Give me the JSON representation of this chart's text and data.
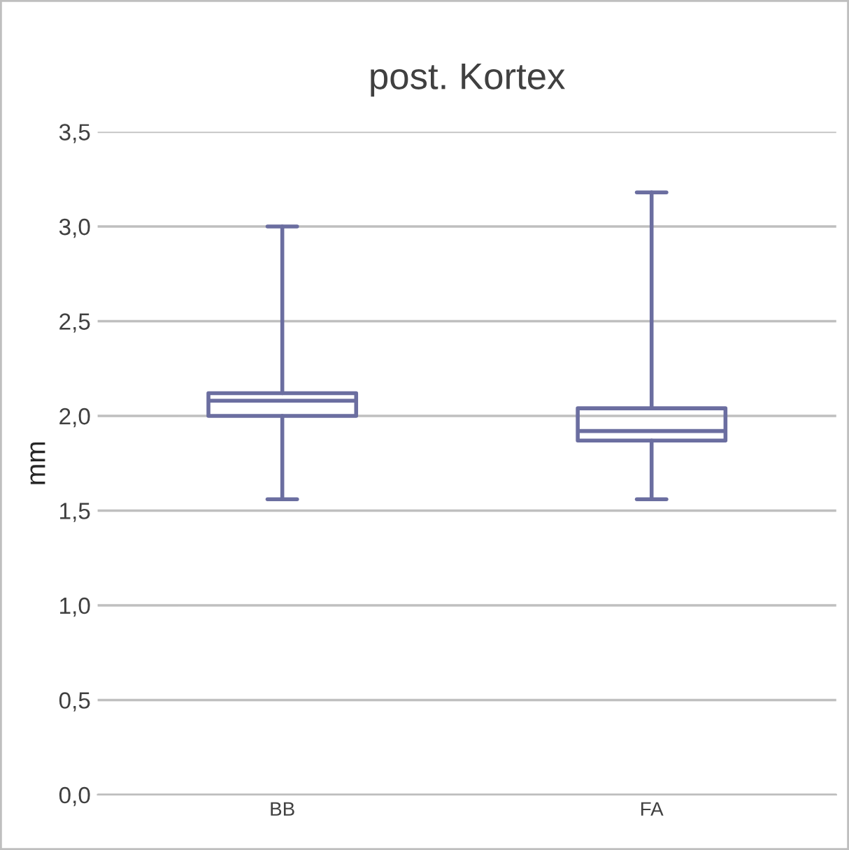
{
  "chart_data": {
    "type": "box",
    "title": "post. Kortex",
    "ylabel": "mm",
    "categories": [
      "BB",
      "FA"
    ],
    "boxes": [
      {
        "low": 1.56,
        "q1": 2.0,
        "median": 2.08,
        "q3": 2.12,
        "high": 3.0
      },
      {
        "low": 1.56,
        "q1": 1.87,
        "median": 1.92,
        "q3": 2.04,
        "high": 3.18
      }
    ],
    "color": "#6b6ea0",
    "ylim": [
      0,
      3.5
    ],
    "yticks": [
      {
        "value": 0,
        "label": "0,0"
      },
      {
        "value": 0.5,
        "label": "0,5"
      },
      {
        "value": 1,
        "label": "1,0"
      },
      {
        "value": 1.5,
        "label": "1,5"
      },
      {
        "value": 2,
        "label": "2,0"
      },
      {
        "value": 2.5,
        "label": "2,5"
      },
      {
        "value": 3,
        "label": "3,0"
      },
      {
        "value": 3.5,
        "label": "3,5"
      }
    ],
    "grid": "y"
  }
}
